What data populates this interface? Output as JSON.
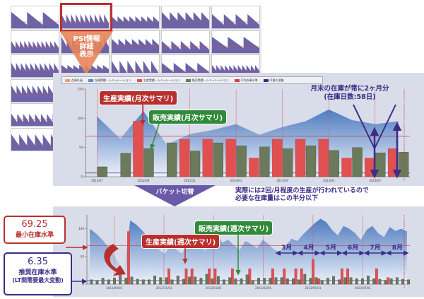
{
  "overview": {
    "label_line1": "PSI情報",
    "label_line2": "詳細",
    "label_line3": "表示",
    "thumbnail_count": 22,
    "selected_thumbnail": 1
  },
  "legend": [
    {
      "label": "在庫計画",
      "color": "#f0a070"
    },
    {
      "label": "在庫実績・シミュレーション",
      "color": "#5c88c4"
    },
    {
      "label": "生産実績・シミュレーション",
      "color": "#e05050"
    },
    {
      "label": "販売実績・シミュレーション",
      "color": "#6a7a5a"
    },
    {
      "label": "平均在庫水準",
      "color": "#d04040"
    },
    {
      "label": "LT最大変動",
      "color": "#3d2c86"
    }
  ],
  "monthly": {
    "callout_production": "生産実績(月次サマリ)",
    "callout_sales": "販売実績(月次サマリ)",
    "note_line1": "月末の在庫が常に2ヶ月分",
    "note_line2": "(在庫日数:58日)"
  },
  "bucket_switch": "バケット切替",
  "middle_note_line1": "実際には2回/月程度の生産が行われているので",
  "middle_note_line2": "必要な在庫量はこの半分以下",
  "weekly": {
    "callout_sales": "販売実績(週次サマリ)",
    "callout_production": "生産実績(週次サマリ)",
    "months": [
      "3月",
      "4月",
      "5月",
      "6月",
      "7月",
      "8月"
    ]
  },
  "min_stock": {
    "value": "69.25",
    "label": "最小在庫水準"
  },
  "recommended_stock": {
    "value": "6.35",
    "label": "推奨在庫水準",
    "sub": "(LT間需要最大変動)"
  },
  "colors": {
    "production": "#e05050",
    "sales": "#6a7a5a",
    "inventory": "#4f7cc0",
    "accent_red": "#b8302e",
    "accent_purple": "#3d2c86",
    "accent_green": "#2f8a3a"
  },
  "chart_data": [
    {
      "type": "bar",
      "granularity": "monthly",
      "categories": [
        "2012/07",
        "2012/08",
        "2012/09",
        "2012/10",
        "2012/11",
        "2012/12",
        "2013/01",
        "2013/02",
        "2013/03",
        "2013/04",
        "2013/05",
        "2013/06",
        "2013/07",
        "2013/08"
      ],
      "tick_labels": [
        "2012/07",
        "2012/09",
        "2012/11",
        "2013/01",
        "2013/03",
        "2013/05",
        "2013/07"
      ],
      "yticks": [
        0,
        50,
        100,
        150
      ],
      "ylim": [
        0,
        150
      ],
      "series": [
        {
          "name": "生産実績・シミュレーション",
          "values": [
            0,
            0,
            95,
            0,
            64,
            64,
            64,
            32,
            64,
            64,
            64,
            32,
            32,
            48
          ]
        },
        {
          "name": "販売実績・シミュレーション",
          "values": [
            17,
            40,
            48,
            58,
            44,
            58,
            53,
            51,
            48,
            53,
            45,
            50,
            41,
            42
          ]
        },
        {
          "name": "在庫実績・シミュレーション",
          "type": "area",
          "values": [
            103,
            65,
            112,
            55,
            73,
            80,
            90,
            72,
            85,
            95,
            115,
            97,
            90,
            95
          ]
        }
      ],
      "reference_lines": {
        "平均在庫水準": 69.25,
        "LT最大変動": 6.35
      }
    },
    {
      "type": "bar",
      "granularity": "weekly",
      "tick_labels": [
        "2012/09/01",
        "2012/11/01",
        "2013/01/01",
        "2013/03/01",
        "2013/05/01",
        "2013/07/01"
      ],
      "yticks": [
        0,
        50,
        100
      ],
      "ylim": [
        0,
        125
      ],
      "series": [
        {
          "name": "生産実績",
          "values": [
            0,
            0,
            0,
            0,
            0,
            0,
            0,
            95,
            0,
            0,
            0,
            0,
            0,
            0,
            28,
            0,
            0,
            28,
            28,
            0,
            0,
            28,
            28,
            0,
            0,
            28,
            0,
            0,
            28,
            0,
            0,
            0,
            28,
            0,
            28,
            0,
            28,
            28,
            0,
            45,
            10,
            0,
            0,
            0,
            28,
            28,
            0,
            0,
            0,
            0,
            28,
            0,
            12,
            0,
            0,
            0
          ]
        },
        {
          "name": "販売実績",
          "values": [
            8,
            7,
            11,
            8,
            11,
            16,
            11,
            13,
            9,
            8,
            8,
            15,
            12,
            12,
            8,
            15,
            9,
            13,
            13,
            11,
            18,
            10,
            14,
            8,
            12,
            10,
            10,
            17,
            7,
            11,
            11,
            11,
            12,
            12,
            10,
            10,
            8,
            18,
            11,
            12,
            7,
            11,
            14,
            8,
            12,
            12,
            10,
            10,
            15,
            10,
            9,
            7,
            10,
            12,
            9,
            8
          ]
        },
        {
          "name": "在庫",
          "type": "area",
          "values": [
            100,
            92,
            82,
            70,
            55,
            38,
            22,
            115,
            108,
            98,
            85,
            72,
            62,
            55,
            70,
            62,
            55,
            75,
            85,
            72,
            60,
            78,
            88,
            75,
            80,
            70,
            62,
            78,
            72,
            65,
            80,
            72,
            62,
            58,
            70,
            82,
            78,
            90,
            100,
            110,
            118,
            112,
            98,
            88,
            105,
            100,
            92,
            80,
            98,
            105,
            92,
            85,
            103,
            96,
            100,
            95
          ]
        }
      ],
      "reference_lines": {
        "最小在庫水準": 69.25,
        "推奨在庫水準": 6.35
      }
    }
  ]
}
